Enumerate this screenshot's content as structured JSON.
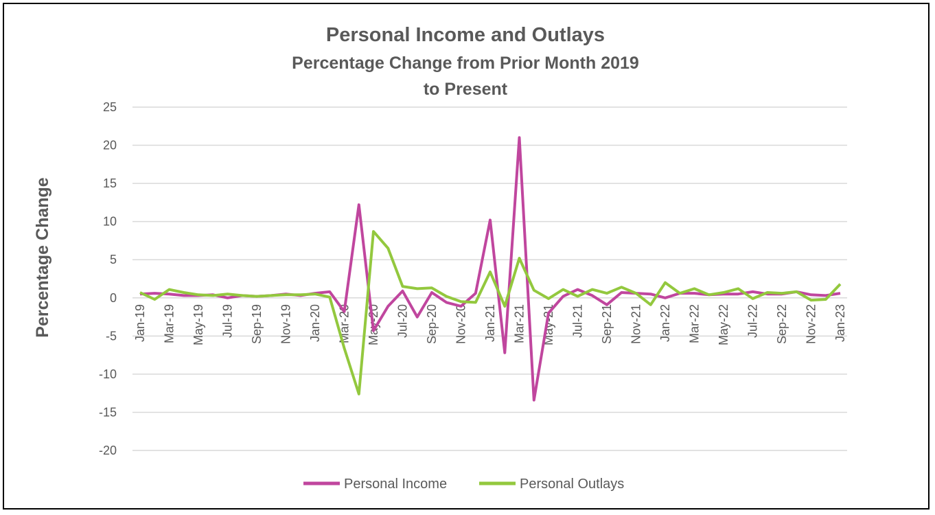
{
  "chart_data": {
    "type": "line",
    "title": "Personal Income and Outlays",
    "subtitle_line1": "Percentage Change from Prior Month 2019",
    "subtitle_line2": "to Present",
    "xlabel": "",
    "ylabel": "Percentage Change",
    "ylim": [
      -20,
      25
    ],
    "yticks": [
      25,
      20,
      15,
      10,
      5,
      0,
      -5,
      -10,
      -15,
      -20
    ],
    "grid": true,
    "legend_position": "bottom",
    "x": [
      "Jan-19",
      "Feb-19",
      "Mar-19",
      "Apr-19",
      "May-19",
      "Jun-19",
      "Jul-19",
      "Aug-19",
      "Sep-19",
      "Oct-19",
      "Nov-19",
      "Dec-19",
      "Jan-20",
      "Feb-20",
      "Mar-20",
      "Apr-20",
      "May-20",
      "Jun-20",
      "Jul-20",
      "Aug-20",
      "Sep-20",
      "Oct-20",
      "Nov-20",
      "Dec-20",
      "Jan-21",
      "Feb-21",
      "Mar-21",
      "Apr-21",
      "May-21",
      "Jun-21",
      "Jul-21",
      "Aug-21",
      "Sep-21",
      "Oct-21",
      "Nov-21",
      "Dec-21",
      "Jan-22",
      "Feb-22",
      "Mar-22",
      "Apr-22",
      "May-22",
      "Jun-22",
      "Jul-22",
      "Aug-22",
      "Sep-22",
      "Oct-22",
      "Nov-22",
      "Dec-22",
      "Jan-23"
    ],
    "xtick_labels": [
      "Jan-19",
      "Mar-19",
      "May-19",
      "Jul-19",
      "Sep-19",
      "Nov-19",
      "Jan-20",
      "Mar-20",
      "May-20",
      "Jul-20",
      "Sep-20",
      "Nov-20",
      "Jan-21",
      "Mar-21",
      "May-21",
      "Jul-21",
      "Sep-21",
      "Nov-21",
      "Jan-22",
      "Mar-22",
      "May-22",
      "Jul-22",
      "Sep-22",
      "Nov-22",
      "Jan-23"
    ],
    "series": [
      {
        "name": "Personal Income",
        "color": "#c0469e",
        "values": [
          0.5,
          0.6,
          0.5,
          0.3,
          0.3,
          0.4,
          0.0,
          0.3,
          0.2,
          0.3,
          0.5,
          0.3,
          0.6,
          0.8,
          -1.8,
          12.2,
          -4.3,
          -1.1,
          0.9,
          -2.5,
          0.7,
          -0.6,
          -1.1,
          0.6,
          10.2,
          -7.2,
          21.0,
          -13.4,
          -2.0,
          0.2,
          1.1,
          0.3,
          -0.9,
          0.7,
          0.6,
          0.5,
          0.0,
          0.6,
          0.6,
          0.4,
          0.5,
          0.5,
          0.8,
          0.5,
          0.5,
          0.8,
          0.4,
          0.3,
          0.6
        ]
      },
      {
        "name": "Personal Outlays",
        "color": "#93c83e",
        "values": [
          0.7,
          -0.2,
          1.1,
          0.7,
          0.4,
          0.3,
          0.5,
          0.3,
          0.2,
          0.3,
          0.4,
          0.4,
          0.5,
          0.1,
          -6.6,
          -12.6,
          8.7,
          6.5,
          1.5,
          1.2,
          1.3,
          0.2,
          -0.5,
          -0.6,
          3.4,
          -1.1,
          5.2,
          1.0,
          -0.1,
          1.1,
          0.2,
          1.1,
          0.6,
          1.4,
          0.6,
          -0.9,
          2.0,
          0.6,
          1.2,
          0.4,
          0.7,
          1.2,
          -0.1,
          0.7,
          0.6,
          0.8,
          -0.3,
          -0.2,
          1.8
        ]
      }
    ]
  }
}
